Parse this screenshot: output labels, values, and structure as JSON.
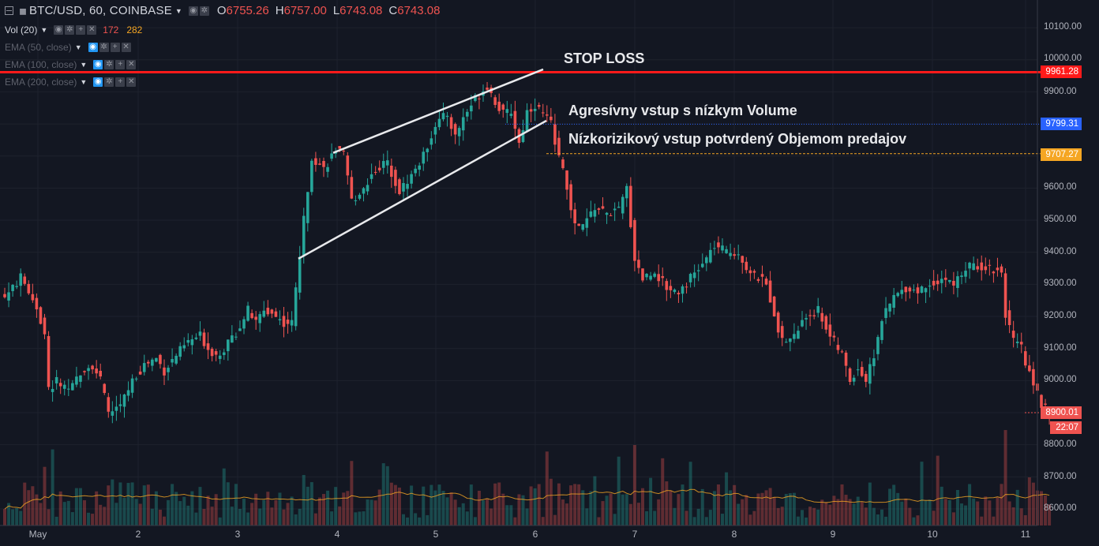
{
  "legend": {
    "symbol": "BTC/USD, 60, COINBASE",
    "ohlc": [
      {
        "k": "O",
        "v": "6755.26"
      },
      {
        "k": "H",
        "v": "6757.00"
      },
      {
        "k": "L",
        "v": "6743.08"
      },
      {
        "k": "C",
        "v": "6743.08"
      }
    ],
    "vol_label": "Vol (20)",
    "vol_value_1": "172",
    "vol_value_2": "282",
    "ema": [
      "EMA (50, close)",
      "EMA (100, close)",
      "EMA (200, close)"
    ]
  },
  "annotations": {
    "stop_loss": "STOP LOSS",
    "aggressive": "Agresívny vstup s nízkym Volume",
    "low_risk": "Nízkorizikový vstup potvrdený Objemom predajov"
  },
  "price_axis": {
    "ticks": [
      "10100.00",
      "10000.00",
      "9900.00",
      "9600.00",
      "9500.00",
      "9400.00",
      "9300.00",
      "9200.00",
      "9100.00",
      "9000.00",
      "8800.00",
      "8700.00",
      "8600.00"
    ],
    "tags": {
      "stop": "9961.28",
      "blue": "9799.31",
      "orange": "9707.27",
      "last": "8900.01",
      "countdown": "22:07"
    }
  },
  "time_axis": [
    "May",
    "2",
    "3",
    "4",
    "5",
    "6",
    "7",
    "8",
    "9",
    "10",
    "11"
  ],
  "colors": {
    "background": "#131722",
    "up": "#26a69a",
    "down": "#ef5350",
    "stop_line": "#ff1a1a",
    "blue_line": "#2962ff",
    "orange_line": "#f5a623",
    "trend_lines": "#e8e9ec"
  },
  "chart_data": {
    "type": "candlestick",
    "symbol": "BTC/USD",
    "interval": "60",
    "exchange": "COINBASE",
    "price_range": [
      8560,
      10180
    ],
    "levels": {
      "stop_loss": 9961.28,
      "aggressive_entry": 9799.31,
      "low_risk_entry": 9707.27,
      "last": 8900.01
    },
    "wedge": {
      "upper": [
        [
          9710,
          9970
        ],
        [
          9815,
          9990
        ]
      ],
      "lower": [
        [
          9380,
          9810
        ],
        [
          9560,
          9870
        ]
      ]
    },
    "close_path": [
      [
        0,
        9260
      ],
      [
        4,
        9320
      ],
      [
        6,
        9280
      ],
      [
        8,
        9230
      ],
      [
        10,
        9140
      ],
      [
        11,
        8970
      ],
      [
        13,
        9000
      ],
      [
        16,
        8960
      ],
      [
        19,
        9030
      ],
      [
        22,
        9050
      ],
      [
        24,
        9000
      ],
      [
        26,
        8900
      ],
      [
        29,
        8920
      ],
      [
        32,
        9000
      ],
      [
        35,
        9050
      ],
      [
        38,
        9070
      ],
      [
        40,
        9030
      ],
      [
        43,
        9080
      ],
      [
        46,
        9120
      ],
      [
        49,
        9140
      ],
      [
        51,
        9100
      ],
      [
        53,
        9080
      ],
      [
        55,
        9100
      ],
      [
        58,
        9150
      ],
      [
        61,
        9220
      ],
      [
        63,
        9180
      ],
      [
        65,
        9220
      ],
      [
        67,
        9210
      ],
      [
        70,
        9180
      ],
      [
        72,
        9180
      ],
      [
        75,
        9500
      ],
      [
        77,
        9700
      ],
      [
        80,
        9660
      ],
      [
        83,
        9720
      ],
      [
        85,
        9700
      ],
      [
        87,
        9560
      ],
      [
        90,
        9600
      ],
      [
        93,
        9660
      ],
      [
        96,
        9680
      ],
      [
        99,
        9590
      ],
      [
        102,
        9640
      ],
      [
        105,
        9700
      ],
      [
        108,
        9800
      ],
      [
        111,
        9830
      ],
      [
        113,
        9760
      ],
      [
        115,
        9820
      ],
      [
        118,
        9880
      ],
      [
        121,
        9920
      ],
      [
        123,
        9870
      ],
      [
        125,
        9830
      ],
      [
        127,
        9840
      ],
      [
        129,
        9740
      ],
      [
        131,
        9840
      ],
      [
        133,
        9860
      ],
      [
        135,
        9830
      ],
      [
        137,
        9800
      ],
      [
        139,
        9700
      ],
      [
        141,
        9600
      ],
      [
        143,
        9480
      ],
      [
        145,
        9480
      ],
      [
        148,
        9540
      ],
      [
        151,
        9520
      ],
      [
        154,
        9530
      ],
      [
        156,
        9600
      ],
      [
        158,
        9380
      ],
      [
        160,
        9320
      ],
      [
        163,
        9340
      ],
      [
        166,
        9290
      ],
      [
        169,
        9280
      ],
      [
        172,
        9320
      ],
      [
        175,
        9360
      ],
      [
        178,
        9420
      ],
      [
        181,
        9400
      ],
      [
        184,
        9400
      ],
      [
        187,
        9330
      ],
      [
        189,
        9320
      ],
      [
        191,
        9300
      ],
      [
        193,
        9210
      ],
      [
        195,
        9120
      ],
      [
        198,
        9140
      ],
      [
        201,
        9200
      ],
      [
        204,
        9220
      ],
      [
        207,
        9140
      ],
      [
        210,
        9080
      ],
      [
        212,
        9000
      ],
      [
        214,
        9040
      ],
      [
        216,
        9000
      ],
      [
        218,
        9080
      ],
      [
        220,
        9190
      ],
      [
        223,
        9260
      ],
      [
        226,
        9290
      ],
      [
        229,
        9280
      ],
      [
        232,
        9300
      ],
      [
        235,
        9320
      ],
      [
        238,
        9300
      ],
      [
        241,
        9350
      ],
      [
        244,
        9360
      ],
      [
        247,
        9350
      ],
      [
        250,
        9340
      ],
      [
        251,
        9210
      ],
      [
        253,
        9120
      ],
      [
        255,
        9100
      ],
      [
        256,
        9050
      ],
      [
        258,
        9000
      ],
      [
        260,
        8920
      ],
      [
        262,
        8900
      ]
    ]
  }
}
